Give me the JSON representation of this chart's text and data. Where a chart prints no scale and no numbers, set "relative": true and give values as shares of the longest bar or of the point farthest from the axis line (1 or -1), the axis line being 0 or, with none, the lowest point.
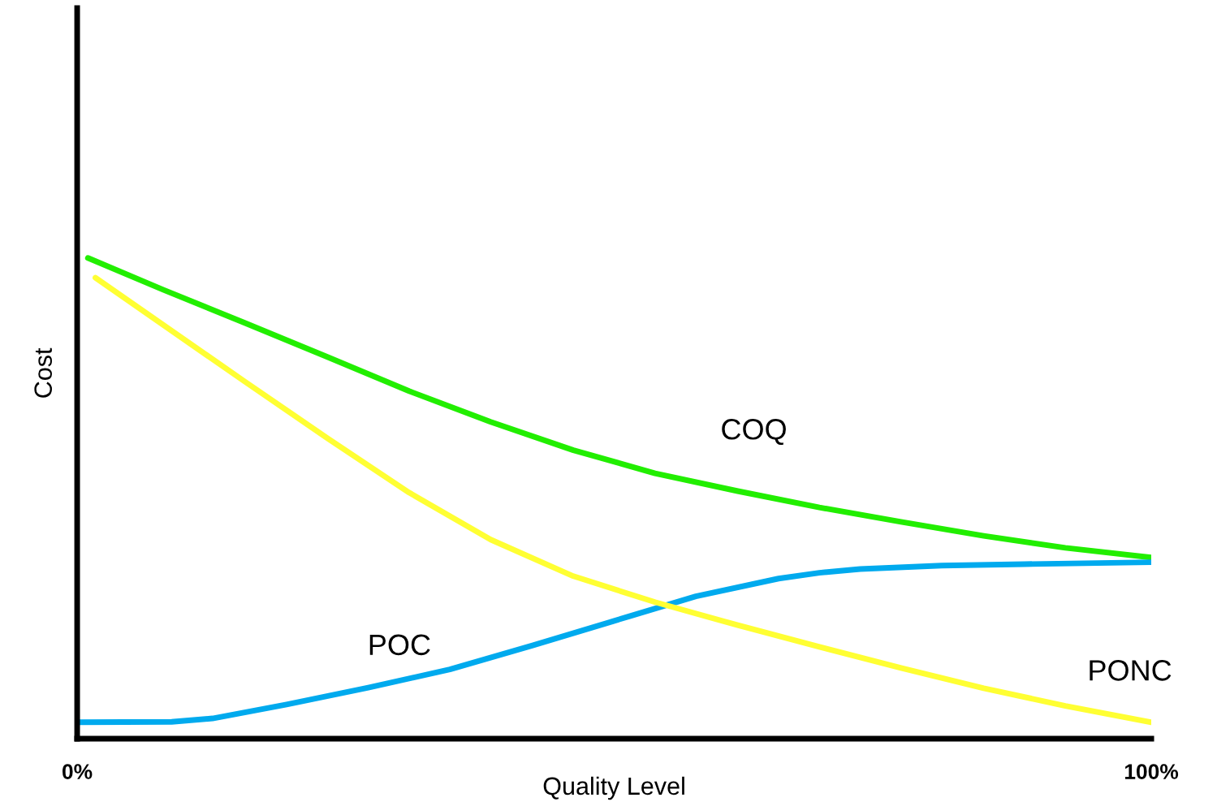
{
  "chart_data": {
    "type": "line",
    "relative": true,
    "xlabel": "Quality Level",
    "ylabel": "Cost",
    "xlim": [
      0,
      100
    ],
    "xticks": [
      {
        "value": 0,
        "label": "0%"
      },
      {
        "value": 100,
        "label": "100%"
      }
    ],
    "series": [
      {
        "name": "COQ",
        "color": "#22ee00",
        "x": [
          1.0,
          8.0,
          15.6,
          23.3,
          30.9,
          38.5,
          46.2,
          53.8,
          61.5,
          69.1,
          76.7,
          84.4,
          92.0,
          100
        ],
        "values": [
          1.0,
          0.934,
          0.865,
          0.794,
          0.723,
          0.659,
          0.6,
          0.552,
          0.515,
          0.481,
          0.451,
          0.422,
          0.397,
          0.377
        ]
      },
      {
        "name": "POC",
        "color": "#00aaee",
        "x": [
          0,
          8.8,
          12.6,
          19.5,
          27.1,
          34.7,
          42.4,
          50.0,
          57.6,
          65.3,
          69.1,
          72.9,
          80.5,
          88.2,
          100
        ],
        "values": [
          0.034,
          0.035,
          0.042,
          0.071,
          0.106,
          0.144,
          0.194,
          0.245,
          0.296,
          0.333,
          0.345,
          0.353,
          0.36,
          0.363,
          0.367
        ]
      },
      {
        "name": "PONC",
        "color": "#ffff33",
        "x": [
          1.7,
          8.0,
          15.6,
          23.3,
          30.9,
          38.5,
          46.2,
          53.8,
          61.5,
          69.1,
          76.7,
          84.4,
          92.0,
          100
        ],
        "values": [
          0.959,
          0.861,
          0.743,
          0.625,
          0.512,
          0.414,
          0.338,
          0.284,
          0.236,
          0.191,
          0.147,
          0.105,
          0.068,
          0.034
        ]
      }
    ]
  }
}
